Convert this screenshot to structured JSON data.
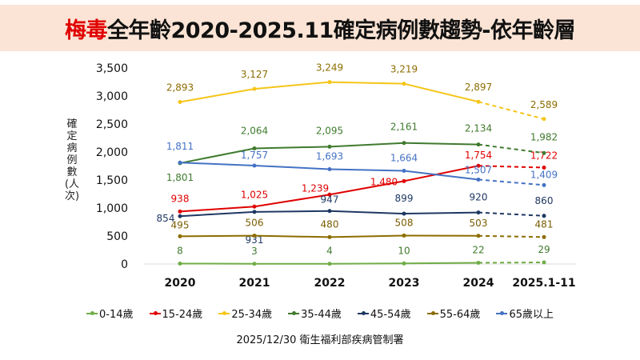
{
  "title": {
    "highlight": "梅毒",
    "rest": "全年齡2020-2025.11確定病例數趨勢-依年齡層"
  },
  "footer": "2025/12/30 衛生福利部疾病管制署",
  "chart_data": {
    "type": "line",
    "title": "梅毒全年齡2020-2025.11確定病例數趨勢-依年齡層",
    "ylabel": "確定病例數(人次)",
    "xlabel": "",
    "categories": [
      "2020",
      "2021",
      "2022",
      "2023",
      "2024",
      "2025.1-11"
    ],
    "ylim": [
      0,
      3500
    ],
    "yticks": [
      "0",
      "500",
      "1,000",
      "1,500",
      "2,000",
      "2,500",
      "3,000",
      "3,500"
    ],
    "grid": false,
    "legend_position": "bottom",
    "last_segment_style": "dashed",
    "series": [
      {
        "name": "0-14歲",
        "color": "#70ad47",
        "values": [
          8,
          3,
          4,
          10,
          22,
          29
        ],
        "labels": [
          "8",
          "3",
          "4",
          "10",
          "22",
          "29"
        ]
      },
      {
        "name": "15-24歲",
        "color": "#e00000",
        "values": [
          938,
          1025,
          1239,
          1480,
          1754,
          1722
        ],
        "labels": [
          "938",
          "1,025",
          "1,239",
          "1,480",
          "1,754",
          "1,722"
        ]
      },
      {
        "name": "25-34歲",
        "color": "#f5c518",
        "values": [
          2893,
          3127,
          3249,
          3219,
          2897,
          2589
        ],
        "labels": [
          "2,893",
          "3,127",
          "3,249",
          "3,219",
          "2,897",
          "2,589"
        ]
      },
      {
        "name": "35-44歲",
        "color": "#3f7a2e",
        "values": [
          1801,
          2064,
          2095,
          2161,
          2134,
          1982
        ],
        "labels": [
          "1,801",
          "2,064",
          "2,095",
          "2,161",
          "2,134",
          "1,982"
        ]
      },
      {
        "name": "45-54歲",
        "color": "#1f3864",
        "values": [
          854,
          931,
          947,
          899,
          920,
          860
        ],
        "labels": [
          "854",
          "931",
          "947",
          "899",
          "920",
          "860"
        ]
      },
      {
        "name": "55-64歲",
        "color": "#8c6d00",
        "values": [
          495,
          506,
          480,
          508,
          503,
          481
        ],
        "labels": [
          "495",
          "506",
          "480",
          "508",
          "503",
          "481"
        ]
      },
      {
        "name": "65歲以上",
        "color": "#4472c4",
        "values": [
          1811,
          1757,
          1693,
          1664,
          1507,
          1409
        ],
        "labels": [
          "1,811",
          "1,757",
          "1,693",
          "1,664",
          "1,507",
          "1,409"
        ]
      }
    ]
  }
}
